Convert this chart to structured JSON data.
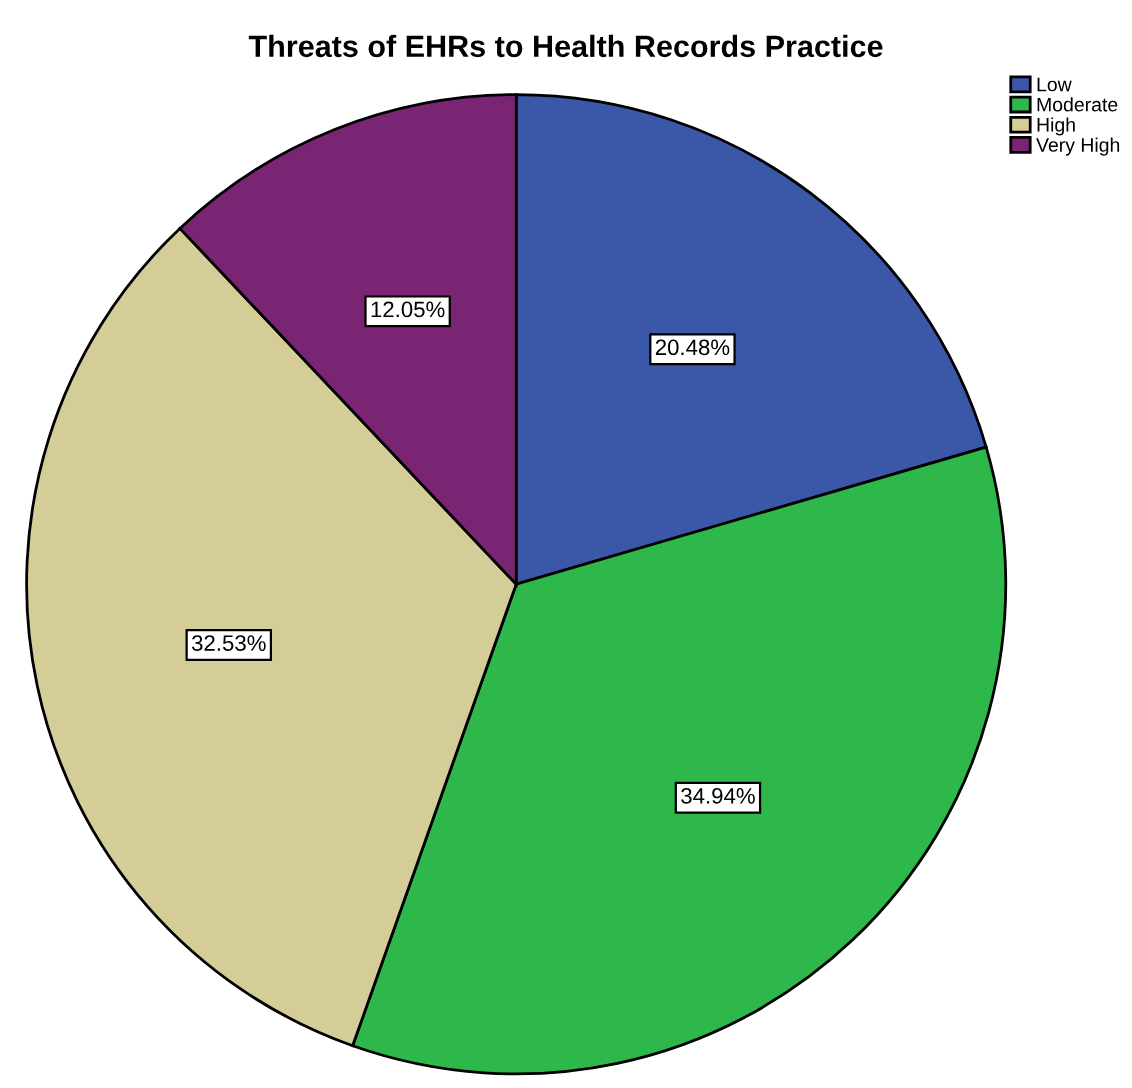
{
  "chart_data": {
    "type": "pie",
    "title": "Threats of EHRs to Health Records Practice",
    "categories": [
      "Low",
      "Moderate",
      "High",
      "Very High"
    ],
    "values": [
      20.48,
      34.94,
      32.53,
      12.05
    ],
    "colors": [
      "#3b58a8",
      "#2eb84b",
      "#d5cd98",
      "#7a2574"
    ],
    "value_labels": [
      "20.48%",
      "34.94%",
      "32.53%",
      "12.05%"
    ],
    "legend": "top right"
  }
}
